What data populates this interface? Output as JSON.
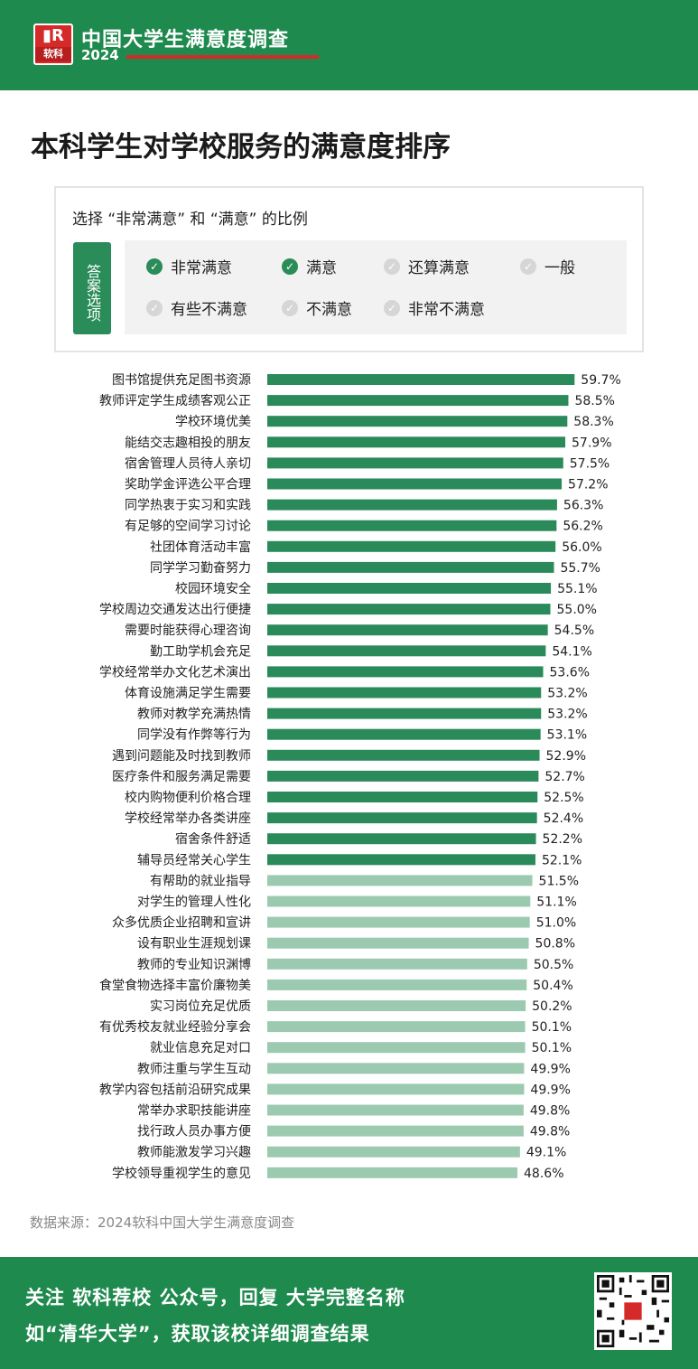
{
  "header": {
    "logo_brand": "软科",
    "title": "中国大学生满意度调查",
    "year": "2024"
  },
  "page_title": "本科学生对学校服务的满意度排序",
  "legend": {
    "title": "选择 “非常满意” 和 “满意” 的比例",
    "options_label": "答案选项",
    "options": [
      {
        "label": "非常满意",
        "checked": true
      },
      {
        "label": "满意",
        "checked": true
      },
      {
        "label": "还算满意",
        "checked": false
      },
      {
        "label": "一般",
        "checked": false
      },
      {
        "label": "有些不满意",
        "checked": false
      },
      {
        "label": "不满意",
        "checked": false
      },
      {
        "label": "非常不满意",
        "checked": false
      }
    ]
  },
  "colors": {
    "bar_dark": "#2a8a5a",
    "bar_light": "#9ccab0",
    "accent_red": "#d42a2a",
    "brand_green": "#1f8a4e"
  },
  "chart_data": {
    "type": "bar",
    "orientation": "horizontal",
    "value_suffix": "%",
    "categories": [
      "图书馆提供充足图书资源",
      "教师评定学生成绩客观公正",
      "学校环境优美",
      "能结交志趣相投的朋友",
      "宿舍管理人员待人亲切",
      "奖助学金评选公平合理",
      "同学热衷于实习和实践",
      "有足够的空间学习讨论",
      "社团体育活动丰富",
      "同学学习勤奋努力",
      "校园环境安全",
      "学校周边交通发达出行便捷",
      "需要时能获得心理咨询",
      "勤工助学机会充足",
      "学校经常举办文化艺术演出",
      "体育设施满足学生需要",
      "教师对教学充满热情",
      "同学没有作弊等行为",
      "遇到问题能及时找到教师",
      "医疗条件和服务满足需要",
      "校内购物便利价格合理",
      "学校经常举办各类讲座",
      "宿舍条件舒适",
      "辅导员经常关心学生",
      "有帮助的就业指导",
      "对学生的管理人性化",
      "众多优质企业招聘和宣讲",
      "设有职业生涯规划课",
      "教师的专业知识渊博",
      "食堂食物选择丰富价廉物美",
      "实习岗位充足优质",
      "有优秀校友就业经验分享会",
      "就业信息充足对口",
      "教师注重与学生互动",
      "教学内容包括前沿研究成果",
      "常举办求职技能讲座",
      "找行政人员办事方便",
      "教师能激发学习兴趣",
      "学校领导重视学生的意见"
    ],
    "values": [
      59.7,
      58.5,
      58.3,
      57.9,
      57.5,
      57.2,
      56.3,
      56.2,
      56.0,
      55.7,
      55.1,
      55.0,
      54.5,
      54.1,
      53.6,
      53.2,
      53.2,
      53.1,
      52.9,
      52.7,
      52.5,
      52.4,
      52.2,
      52.1,
      51.5,
      51.1,
      51.0,
      50.8,
      50.5,
      50.4,
      50.2,
      50.1,
      50.1,
      49.9,
      49.9,
      49.8,
      49.8,
      49.1,
      48.6
    ],
    "value_labels": [
      "59.7%",
      "58.5%",
      "58.3%",
      "57.9%",
      "57.5%",
      "57.2%",
      "56.3%",
      "56.2%",
      "56.0%",
      "55.7%",
      "55.1%",
      "55.0%",
      "54.5%",
      "54.1%",
      "53.6%",
      "53.2%",
      "53.2%",
      "53.1%",
      "52.9%",
      "52.7%",
      "52.5%",
      "52.4%",
      "52.2%",
      "52.1%",
      "51.5%",
      "51.1%",
      "51.0%",
      "50.8%",
      "50.5%",
      "50.4%",
      "50.2%",
      "50.1%",
      "50.1%",
      "49.9%",
      "49.9%",
      "49.8%",
      "49.8%",
      "49.1%",
      "48.6%"
    ],
    "dark_count": 24
  },
  "source_text": "数据来源：2024软科中国大学生满意度调查",
  "footer": {
    "line1": "关注 软科荐校 公众号，回复 大学完整名称",
    "line2": "如“清华大学”，获取该校详细调查结果",
    "qr_label": "软科荐校"
  }
}
